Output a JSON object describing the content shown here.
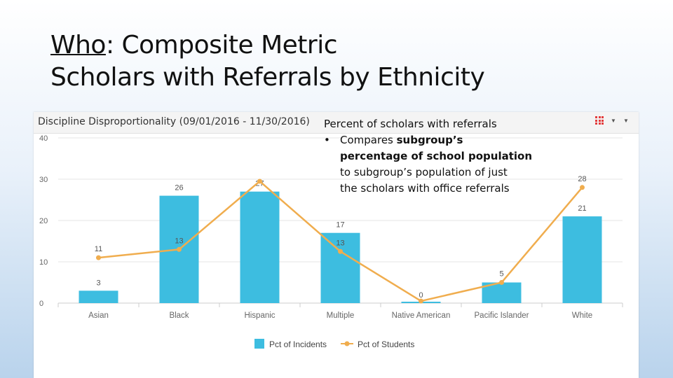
{
  "slide": {
    "title_who": "Who",
    "title_rest_line1": ":  Composite Metric",
    "title_line2": "Scholars with Referrals by Ethnicity"
  },
  "panel": {
    "title": "Discipline Disproportionality (09/01/2016 - 11/30/2016)",
    "icons": [
      "menu-grid-icon",
      "caret-down-icon",
      "caret-down-icon"
    ]
  },
  "callout": {
    "heading": "Percent of scholars with referrals",
    "bullet": "•",
    "line_a": "Compares ",
    "line_a_bold": "subgroup’s",
    "line_b_bold": "percentage of school population",
    "line_c": "to subgroup’s population of just",
    "line_d": "the scholars with office referrals"
  },
  "chart_data": {
    "type": "bar",
    "categories": [
      "Asian",
      "Black",
      "Hispanic",
      "Multiple",
      "Native American",
      "Pacific Islander",
      "White"
    ],
    "series": [
      {
        "name": "Pct of Incidents",
        "kind": "bar",
        "color": "#3dbde0",
        "values": [
          3,
          26,
          27,
          17,
          0,
          5,
          21
        ]
      },
      {
        "name": "Pct of Students",
        "kind": "line",
        "color": "#f0ad4e",
        "values": [
          11,
          13,
          29.5,
          12.5,
          0.5,
          5,
          28
        ]
      }
    ],
    "point_labels": {
      "bars": [
        "3",
        "26",
        "27",
        "17",
        "0",
        "",
        "21"
      ],
      "line": [
        "11",
        "13",
        "",
        "13",
        "",
        "5",
        "28"
      ]
    },
    "yticks": [
      "0",
      "10",
      "20",
      "30",
      "40"
    ],
    "ylim": [
      0,
      40
    ],
    "grid": true,
    "legend_position": "bottom"
  },
  "colors": {
    "bar": "#3dbde0",
    "line": "#f0ad4e",
    "grid": "#e6e6e6",
    "axis_text": "#666666"
  }
}
